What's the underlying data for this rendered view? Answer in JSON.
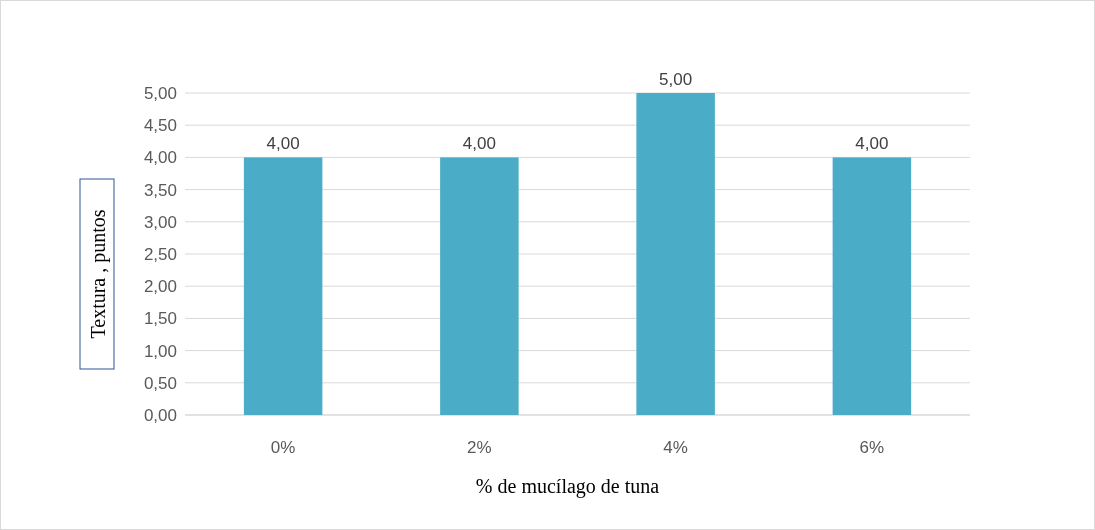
{
  "chart_data": {
    "type": "bar",
    "xlabel": "% de mucílago de tuna",
    "ylabel": "Textura , puntos",
    "categories": [
      "0%",
      "2%",
      "4%",
      "6%"
    ],
    "values": [
      4,
      4,
      5,
      4
    ],
    "value_labels": [
      "4,00",
      "4,00",
      "5,00",
      "4,00"
    ],
    "color": "#4aacc6",
    "ylim": [
      0,
      5
    ],
    "yticks": [
      {
        "value": 0,
        "label": "0,00"
      },
      {
        "value": 0.5,
        "label": "0,50"
      },
      {
        "value": 1,
        "label": "1,00"
      },
      {
        "value": 1.5,
        "label": "1,50"
      },
      {
        "value": 2,
        "label": "2,00"
      },
      {
        "value": 2.5,
        "label": "2,50"
      },
      {
        "value": 3,
        "label": "3,00"
      },
      {
        "value": 3.5,
        "label": "3,50"
      },
      {
        "value": 4,
        "label": "4,00"
      },
      {
        "value": 4.5,
        "label": "4,50"
      },
      {
        "value": 5,
        "label": "5,00"
      }
    ],
    "grid": true
  }
}
